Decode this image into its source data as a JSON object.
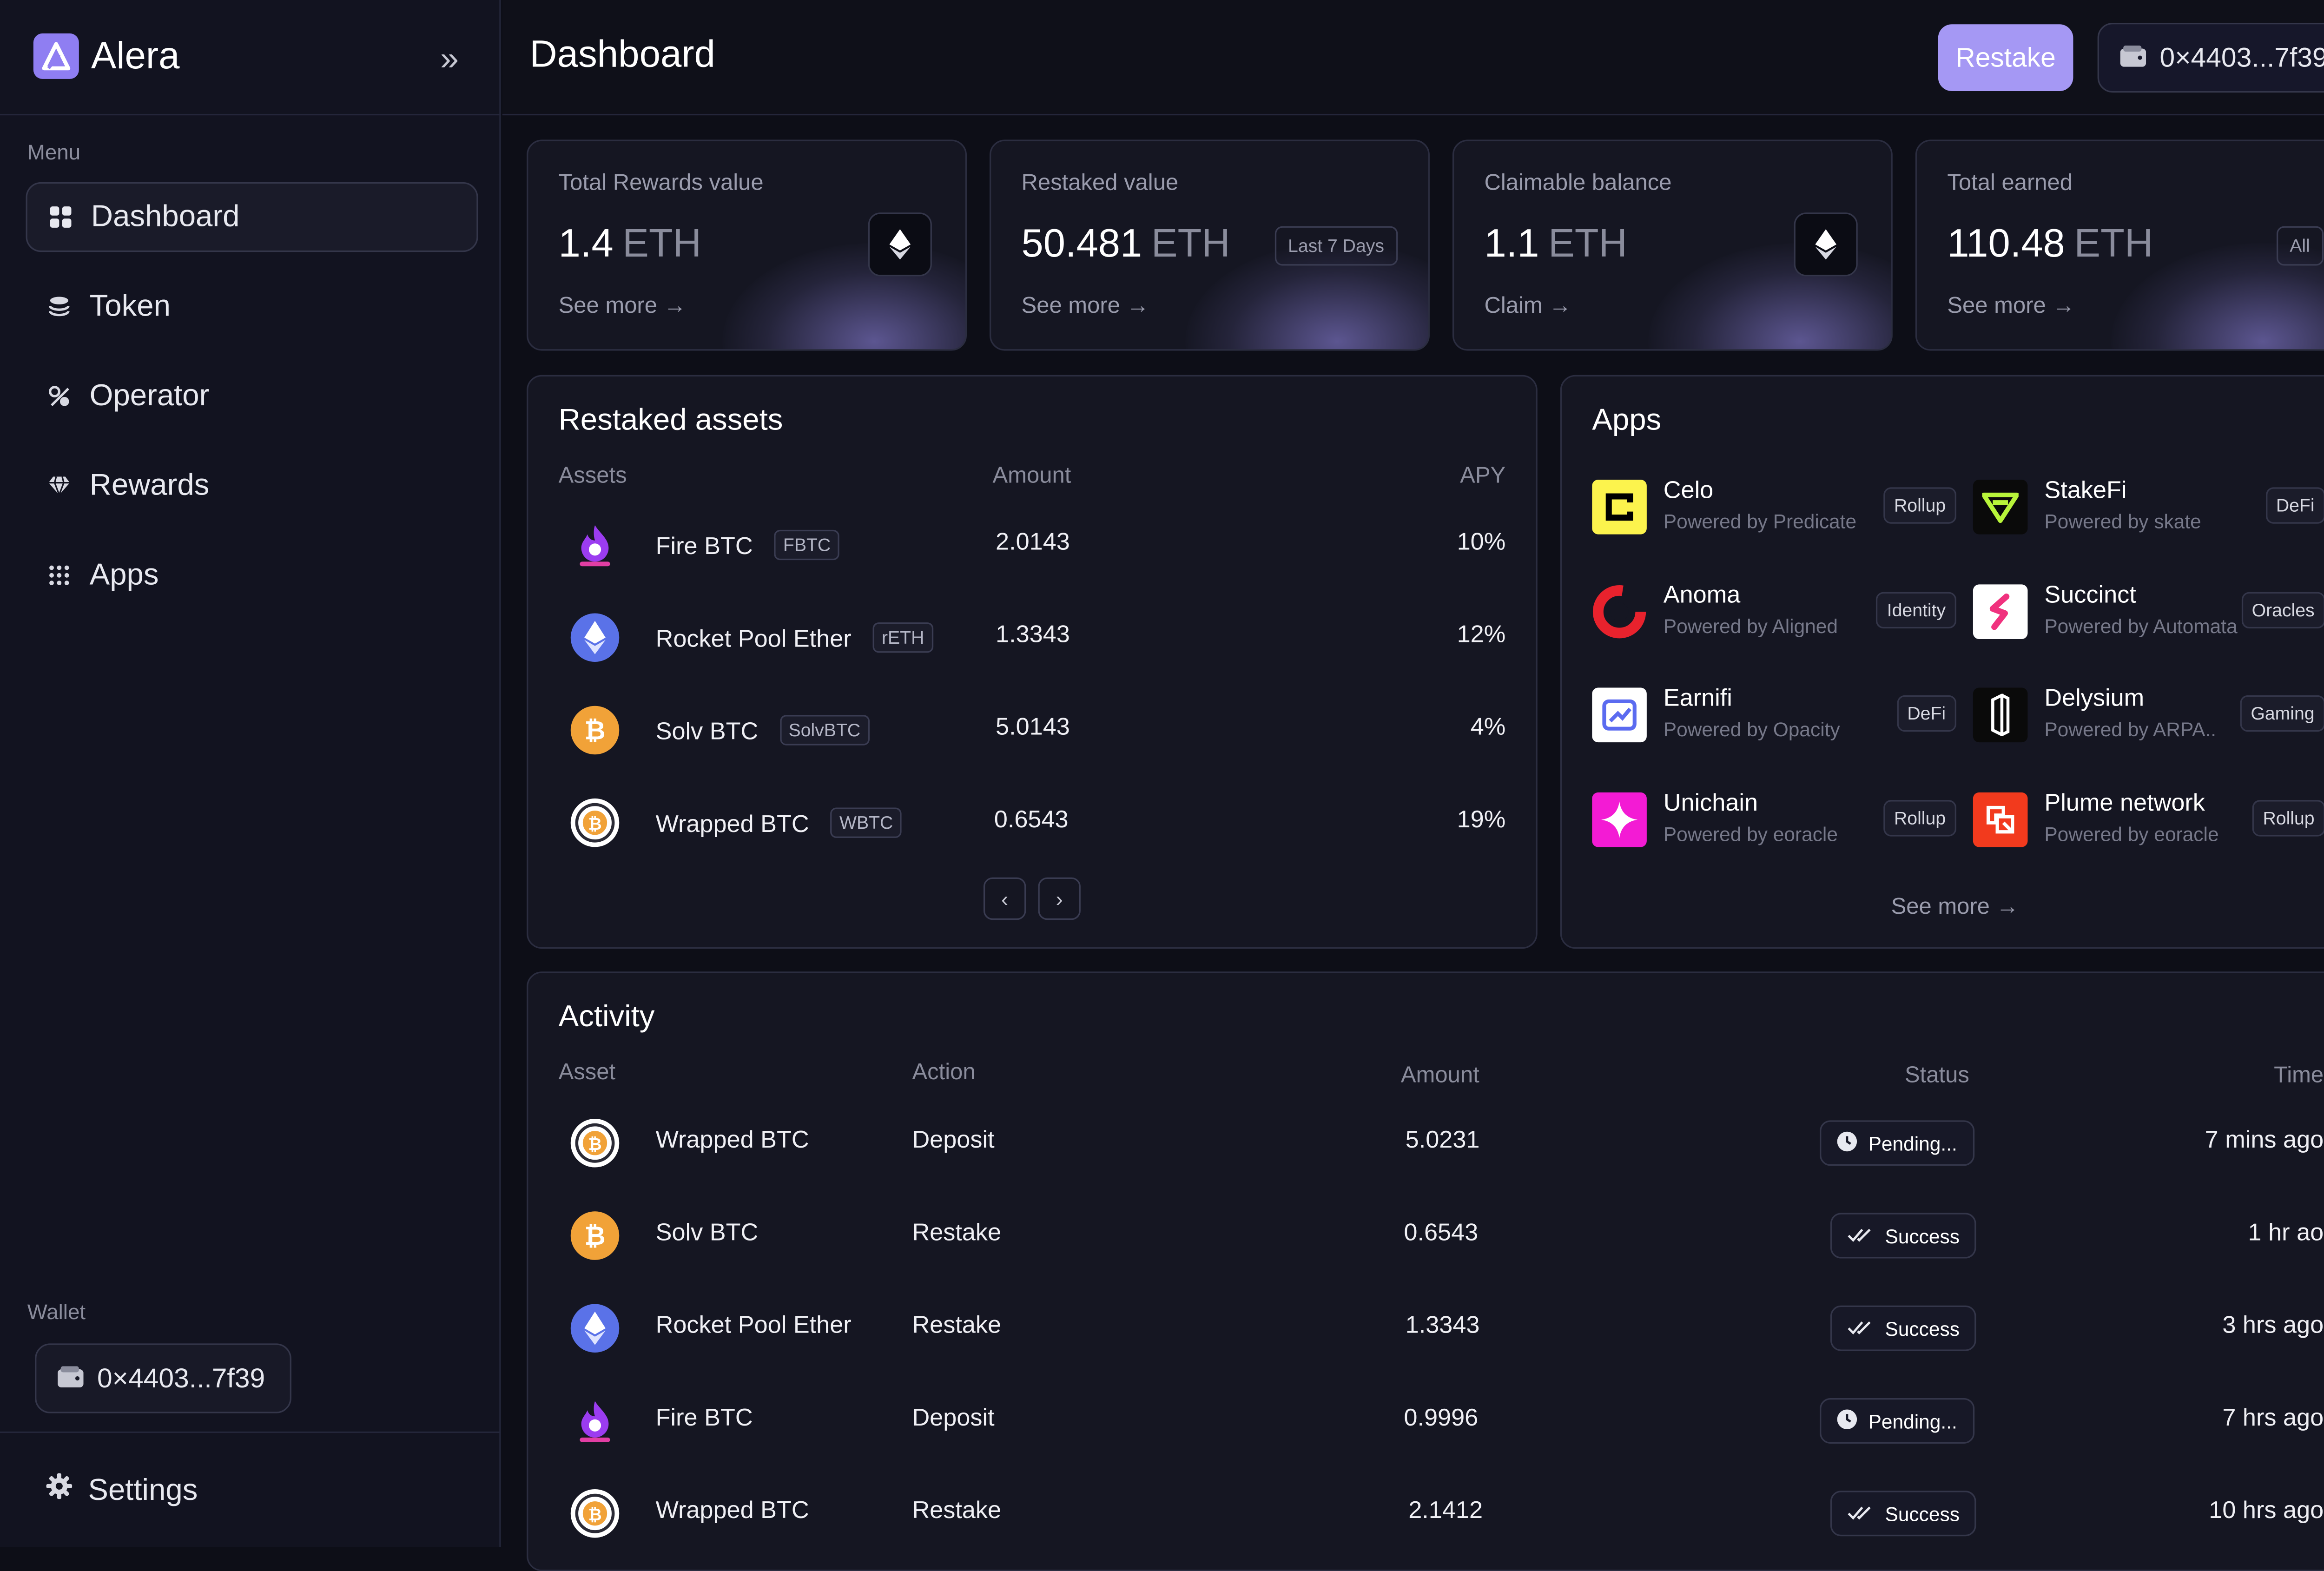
{
  "app": {
    "name": "Alera"
  },
  "sidebar": {
    "menu_label": "Menu",
    "items": [
      {
        "label": "Dashboard",
        "icon": "grid-icon"
      },
      {
        "label": "Token",
        "icon": "database-icon"
      },
      {
        "label": "Operator",
        "icon": "operator-icon"
      },
      {
        "label": "Rewards",
        "icon": "diamond-icon"
      },
      {
        "label": "Apps",
        "icon": "dots-grid-icon"
      }
    ],
    "wallet_label": "Wallet",
    "wallet_address": "0×4403...7f39",
    "settings_label": "Settings"
  },
  "header": {
    "title": "Dashboard",
    "restake_label": "Restake",
    "address": "0×4403...7f39"
  },
  "stats": [
    {
      "label": "Total Rewards value",
      "value": "1.4",
      "unit": "ETH",
      "link": "See more"
    },
    {
      "label": "Restaked value",
      "value": "50.481",
      "unit": "ETH",
      "link": "See more",
      "tag": "Last 7 Days"
    },
    {
      "label": "Claimable balance",
      "value": "1.1",
      "unit": "ETH",
      "link": "Claim"
    },
    {
      "label": "Total earned",
      "value": "110.48",
      "unit": "ETH",
      "link": "See more",
      "tag": "All"
    }
  ],
  "restaked": {
    "title": "Restaked assets",
    "columns": [
      "Assets",
      "Amount",
      "APY"
    ],
    "rows": [
      {
        "name": "Fire BTC",
        "symbol": "FBTC",
        "amount": "2.0143",
        "apy": "10%"
      },
      {
        "name": "Rocket Pool Ether",
        "symbol": "rETH",
        "amount": "1.3343",
        "apy": "12%"
      },
      {
        "name": "Solv BTC",
        "symbol": "SolvBTC",
        "amount": "5.0143",
        "apy": "4%"
      },
      {
        "name": "Wrapped BTC",
        "symbol": "WBTC",
        "amount": "0.6543",
        "apy": "19%"
      }
    ]
  },
  "apps": {
    "title": "Apps",
    "see_more": "See more",
    "items": [
      {
        "name": "Celo",
        "by": "Powered by Predicate",
        "tag": "Rollup"
      },
      {
        "name": "StakeFi",
        "by": "Powered by skate",
        "tag": "DeFi"
      },
      {
        "name": "Anoma",
        "by": "Powered by Aligned",
        "tag": "Identity"
      },
      {
        "name": "Succinct",
        "by": "Powered by Automata",
        "tag": "Oracles"
      },
      {
        "name": "Earnifi",
        "by": "Powered by Opacity",
        "tag": "DeFi"
      },
      {
        "name": "Delysium",
        "by": "Powered by ARPA..",
        "tag": "Gaming"
      },
      {
        "name": "Unichain",
        "by": "Powered by eoracle",
        "tag": "Rollup"
      },
      {
        "name": "Plume network",
        "by": "Powered by eoracle",
        "tag": "Rollup"
      }
    ]
  },
  "activity": {
    "title": "Activity",
    "columns": [
      "Asset",
      "Action",
      "Amount",
      "Status",
      "Time"
    ],
    "rows": [
      {
        "asset": "Wrapped BTC",
        "action": "Deposit",
        "amount": "5.0231",
        "status": "Pending...",
        "time": "7 mins ago"
      },
      {
        "asset": "Solv BTC",
        "action": "Restake",
        "amount": "0.6543",
        "status": "Success",
        "time": "1 hr ao"
      },
      {
        "asset": "Rocket Pool Ether",
        "action": "Restake",
        "amount": "1.3343",
        "status": "Success",
        "time": "3 hrs ago"
      },
      {
        "asset": "Fire BTC",
        "action": "Deposit",
        "amount": "0.9996",
        "status": "Pending...",
        "time": "7 hrs ago"
      },
      {
        "asset": "Wrapped BTC",
        "action": "Restake",
        "amount": "2.1412",
        "status": "Success",
        "time": "10 hrs ago"
      }
    ]
  },
  "colors": {
    "accent": "#a598f4",
    "background": "#0d0e17",
    "panel": "#151622"
  }
}
